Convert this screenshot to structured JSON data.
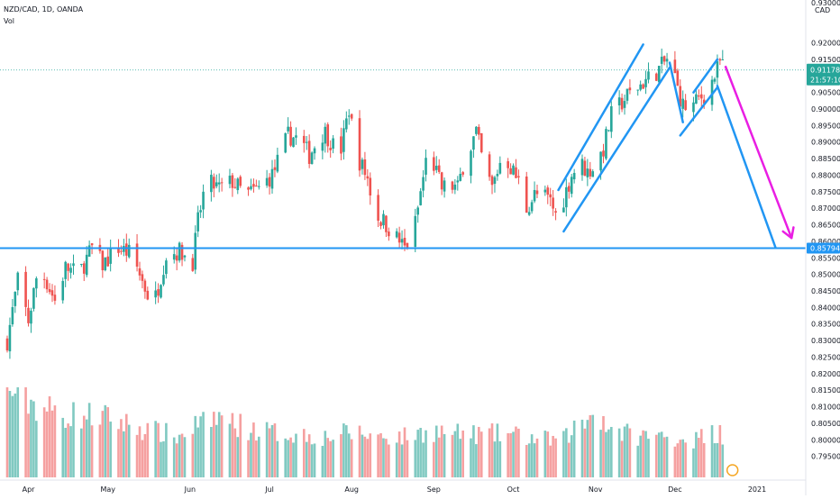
{
  "header": {
    "symbol": "NZD/CAD, 1D, OANDA",
    "volume_label": "Vol"
  },
  "colors": {
    "up": "#26a69a",
    "down": "#ef5350",
    "up_volume": "#80c9c1",
    "down_volume": "#f5a0a0",
    "support_line": "#2196f3",
    "channel_lines": "#2196f3",
    "projection_arrow": "#e91ee3",
    "price_label_bg": "#26a69a",
    "background": "#ffffff",
    "axis_text": "#131722"
  },
  "chart_data": {
    "type": "candlestick",
    "price_axis": {
      "currency": "CAD",
      "min": 0.79,
      "max": 0.9275,
      "ticks": [
        "0.92000",
        "0.91500",
        "0.91000",
        "0.90500",
        "0.90000",
        "0.89500",
        "0.89000",
        "0.88500",
        "0.88000",
        "0.87500",
        "0.87000",
        "0.86500",
        "0.86000",
        "0.85500",
        "0.85000",
        "0.84500",
        "0.84000",
        "0.83500",
        "0.83000",
        "0.82500",
        "0.82000",
        "0.81500",
        "0.81000",
        "0.80500",
        "0.80000",
        "0.79500"
      ],
      "top_label_partial": "0.93000"
    },
    "time_axis": {
      "labels": [
        {
          "label": "Apr",
          "day": 8
        },
        {
          "label": "May",
          "day": 38
        },
        {
          "label": "Jun",
          "day": 69
        },
        {
          "label": "Jul",
          "day": 99
        },
        {
          "label": "Aug",
          "day": 130
        },
        {
          "label": "Sep",
          "day": 161
        },
        {
          "label": "Oct",
          "day": 191
        },
        {
          "label": "Nov",
          "day": 222
        },
        {
          "label": "Dec",
          "day": 252
        },
        {
          "label": "2021",
          "day": 283
        }
      ],
      "first_day": 0,
      "last_day": 272
    },
    "current_price": {
      "value": "0.91178",
      "countdown": "21:57:10"
    },
    "support_level": {
      "value": "0.85794"
    },
    "close_path": [
      [
        0,
        0.83
      ],
      [
        4,
        0.848
      ],
      [
        8,
        0.836
      ],
      [
        12,
        0.853
      ],
      [
        18,
        0.842
      ],
      [
        22,
        0.852
      ],
      [
        27,
        0.85
      ],
      [
        32,
        0.858
      ],
      [
        36,
        0.853
      ],
      [
        42,
        0.858
      ],
      [
        47,
        0.856
      ],
      [
        52,
        0.846
      ],
      [
        55,
        0.84
      ],
      [
        60,
        0.856
      ],
      [
        65,
        0.857
      ],
      [
        70,
        0.854
      ],
      [
        72,
        0.866
      ],
      [
        75,
        0.878
      ],
      [
        80,
        0.876
      ],
      [
        85,
        0.878
      ],
      [
        90,
        0.874
      ],
      [
        95,
        0.876
      ],
      [
        100,
        0.88
      ],
      [
        103,
        0.886
      ],
      [
        106,
        0.892
      ],
      [
        110,
        0.891
      ],
      [
        114,
        0.886
      ],
      [
        118,
        0.892
      ],
      [
        120,
        0.893
      ],
      [
        123,
        0.889
      ],
      [
        126,
        0.888
      ],
      [
        129,
        0.9
      ],
      [
        132,
        0.886
      ],
      [
        136,
        0.879
      ],
      [
        139,
        0.868
      ],
      [
        142,
        0.866
      ],
      [
        146,
        0.862
      ],
      [
        150,
        0.858
      ],
      [
        153,
        0.861
      ],
      [
        155,
        0.87
      ],
      [
        158,
        0.884
      ],
      [
        161,
        0.883
      ],
      [
        164,
        0.876
      ],
      [
        167,
        0.877
      ],
      [
        170,
        0.876
      ],
      [
        172,
        0.883
      ],
      [
        175,
        0.889
      ],
      [
        177,
        0.893
      ],
      [
        180,
        0.882
      ],
      [
        183,
        0.876
      ],
      [
        186,
        0.884
      ],
      [
        189,
        0.884
      ],
      [
        193,
        0.878
      ],
      [
        196,
        0.87
      ],
      [
        199,
        0.874
      ],
      [
        202,
        0.874
      ],
      [
        205,
        0.872
      ],
      [
        208,
        0.866
      ],
      [
        210,
        0.873
      ],
      [
        213,
        0.88
      ],
      [
        216,
        0.884
      ],
      [
        219,
        0.881
      ],
      [
        222,
        0.883
      ],
      [
        225,
        0.888
      ],
      [
        228,
        0.898
      ],
      [
        231,
        0.901
      ],
      [
        234,
        0.904
      ],
      [
        237,
        0.906
      ],
      [
        240,
        0.908
      ],
      [
        243,
        0.91
      ],
      [
        246,
        0.912
      ],
      [
        249,
        0.915
      ],
      [
        251,
        0.913
      ],
      [
        253,
        0.906
      ],
      [
        255,
        0.901
      ],
      [
        258,
        0.9
      ],
      [
        261,
        0.903
      ],
      [
        264,
        0.905
      ],
      [
        267,
        0.91
      ],
      [
        269,
        0.914
      ],
      [
        272,
        0.912
      ]
    ],
    "volume_profile": [
      [
        0,
        1.0
      ],
      [
        10,
        0.82
      ],
      [
        20,
        0.7
      ],
      [
        35,
        0.68
      ],
      [
        50,
        0.55
      ],
      [
        65,
        0.45
      ],
      [
        72,
        0.6
      ],
      [
        80,
        0.68
      ],
      [
        90,
        0.55
      ],
      [
        100,
        0.5
      ],
      [
        110,
        0.48
      ],
      [
        120,
        0.45
      ],
      [
        130,
        0.5
      ],
      [
        140,
        0.46
      ],
      [
        150,
        0.45
      ],
      [
        160,
        0.52
      ],
      [
        170,
        0.48
      ],
      [
        180,
        0.48
      ],
      [
        190,
        0.48
      ],
      [
        200,
        0.42
      ],
      [
        210,
        0.42
      ],
      [
        215,
        0.58
      ],
      [
        219,
        0.62
      ],
      [
        222,
        0.9
      ],
      [
        225,
        0.55
      ],
      [
        230,
        0.5
      ],
      [
        240,
        0.46
      ],
      [
        250,
        0.45
      ],
      [
        260,
        0.42
      ],
      [
        265,
        0.5
      ],
      [
        269,
        0.48
      ],
      [
        272,
        0.38
      ]
    ],
    "volume_spikes": [
      [
        1,
        0.96
      ],
      [
        77,
        0.56
      ],
      [
        208,
        0.55
      ],
      [
        222,
        1.0
      ],
      [
        225,
        0.68
      ],
      [
        228,
        0.56
      ],
      [
        265,
        0.48
      ],
      [
        269,
        0.58
      ]
    ],
    "annotations": {
      "support_line": {
        "price": 0.85794
      },
      "channels": [
        {
          "start": [
            208,
            0.8755
          ],
          "end": [
            240,
            0.9195
          ]
        },
        {
          "start": [
            210,
            0.863
          ],
          "end": [
            250,
            0.9125
          ]
        },
        {
          "start": [
            250,
            0.914
          ],
          "end": [
            255,
            0.896
          ]
        },
        {
          "start": [
            259,
            0.905
          ],
          "end": [
            268,
            0.915
          ]
        },
        {
          "start": [
            254,
            0.892
          ],
          "end": [
            268,
            0.9065
          ]
        },
        {
          "start": [
            268,
            0.907
          ],
          "end": [
            290,
            0.858
          ]
        }
      ],
      "projection_arrow": {
        "start": [
          271,
          0.913
        ],
        "end": [
          296,
          0.861
        ]
      }
    },
    "grid": false,
    "legend": "top-left"
  }
}
